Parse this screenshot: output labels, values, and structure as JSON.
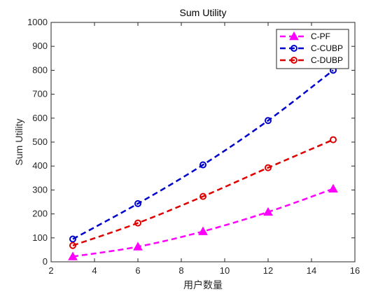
{
  "chart_data": {
    "type": "line",
    "title": "Sum Utility",
    "xlabel": "用户数量",
    "ylabel": "Sum Utility",
    "xlim": [
      2,
      16
    ],
    "ylim": [
      0,
      1000
    ],
    "xticks": [
      "2",
      "4",
      "6",
      "8",
      "10",
      "12",
      "14",
      "16"
    ],
    "yticks": [
      "0",
      "100",
      "200",
      "300",
      "400",
      "500",
      "600",
      "700",
      "800",
      "900",
      "1000"
    ],
    "grid": false,
    "legend_position": "top-right",
    "x": [
      3,
      6,
      9,
      12,
      15
    ],
    "series": [
      {
        "name": "C-PF",
        "values": [
          22,
          63,
          127,
          208,
          305
        ],
        "color": "#ff00ff",
        "marker": "triangle",
        "line_style": "dashed"
      },
      {
        "name": "C-CUBP",
        "values": [
          95,
          243,
          405,
          590,
          800
        ],
        "color": "#0000cc",
        "marker": "circle",
        "line_style": "dashed"
      },
      {
        "name": "C-DUBP",
        "values": [
          68,
          162,
          273,
          393,
          510
        ],
        "color": "#dd0000",
        "marker": "circle",
        "line_style": "dashed"
      }
    ]
  }
}
